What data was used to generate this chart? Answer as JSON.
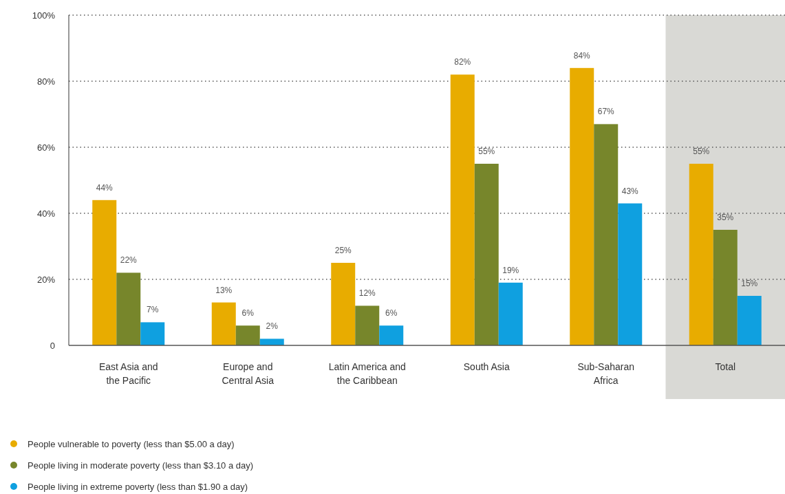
{
  "chart_data": {
    "type": "bar",
    "categories": [
      "East Asia and\nthe Pacific",
      "Europe and\nCentral Asia",
      "Latin America and\nthe Caribbean",
      "South Asia",
      "Sub-Saharan\nAfrica",
      "Total"
    ],
    "series": [
      {
        "name": "People vulnerable to poverty (less than $5.00 a day)",
        "color": "#e8ac00",
        "values": [
          44,
          13,
          25,
          82,
          84,
          55
        ],
        "value_labels": [
          "44%",
          "13%",
          "25%",
          "82%",
          "84%",
          "55%"
        ]
      },
      {
        "name": "People living in moderate poverty (less than $3.10 a day)",
        "color": "#77862b",
        "values": [
          22,
          6,
          12,
          55,
          67,
          35
        ],
        "value_labels": [
          "22%",
          "6%",
          "12%",
          "55%",
          "67%",
          "35%"
        ]
      },
      {
        "name": "People living in extreme poverty (less than $1.90 a day)",
        "color": "#0fa0e0",
        "values": [
          7,
          2,
          6,
          19,
          43,
          15
        ],
        "value_labels": [
          "7%",
          "2%",
          "6%",
          "19%",
          "43%",
          "15%"
        ]
      }
    ],
    "ylim": [
      0,
      100
    ],
    "yticks": [
      0,
      {
        "value": 20,
        "label": "20%"
      },
      {
        "value": 40,
        "label": "40%"
      },
      {
        "value": 60,
        "label": "60%"
      },
      {
        "value": 80,
        "label": "80%"
      },
      {
        "value": 100,
        "label": "100%"
      }
    ],
    "grid": "y",
    "legend": "bottom",
    "bands": [
      {
        "axis": "x",
        "from": "Total",
        "to": "Total",
        "color": "#d9d9d5"
      }
    ]
  }
}
